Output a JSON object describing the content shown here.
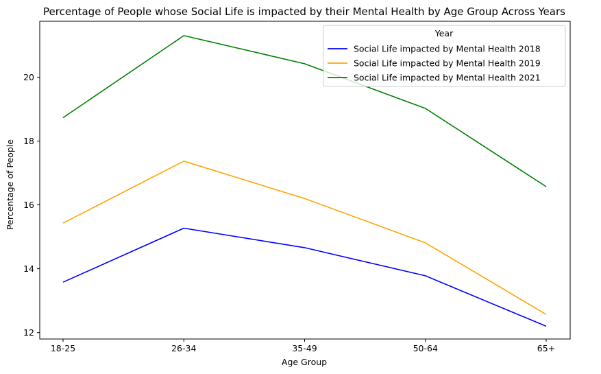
{
  "chart_data": {
    "type": "line",
    "title": "Percentage of People whose Social Life is impacted by their Mental Health by Age Group Across Years",
    "xlabel": "Age Group",
    "ylabel": "Percentage of People",
    "categories": [
      "18-25",
      "26-34",
      "35-49",
      "50-64",
      "65+"
    ],
    "ylim": [
      11.8,
      21.75
    ],
    "yticks": [
      "12",
      "14",
      "16",
      "18",
      "20"
    ],
    "grid": false,
    "legend": {
      "title": "Year",
      "placement": "top-right"
    },
    "series": [
      {
        "name": "Social Life impacted by Mental Health 2018",
        "color": "#0000ff",
        "values": [
          13.58,
          15.27,
          14.66,
          13.78,
          12.2
        ]
      },
      {
        "name": "Social Life impacted by Mental Health 2019",
        "color": "#ffa500",
        "values": [
          15.43,
          17.37,
          16.2,
          14.81,
          12.57
        ]
      },
      {
        "name": "Social Life impacted by Mental Health 2021",
        "color": "#008000",
        "values": [
          18.73,
          21.3,
          20.42,
          19.02,
          16.57
        ]
      }
    ]
  }
}
